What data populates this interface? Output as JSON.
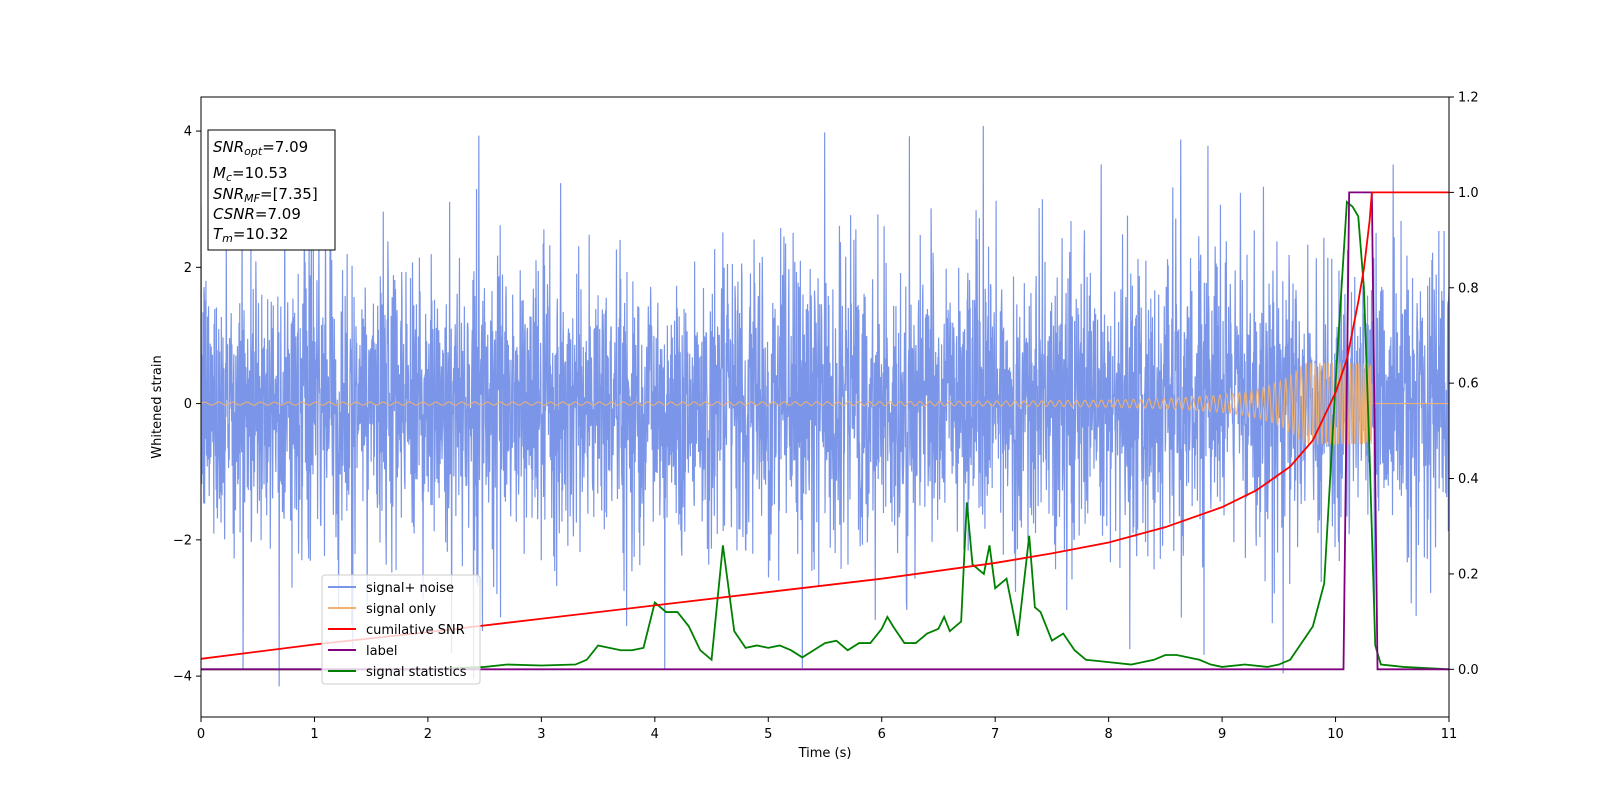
{
  "chart_data": {
    "type": "line",
    "title": "",
    "xlabel": "Time (s)",
    "ylabel": "Whitened strain",
    "xlim": [
      0,
      11
    ],
    "ylim": [
      -4.6,
      4.5
    ],
    "y2lim": [
      -0.1,
      1.2
    ],
    "x_ticks": [
      0,
      1,
      2,
      3,
      4,
      5,
      6,
      7,
      8,
      9,
      10,
      11
    ],
    "y_ticks": [
      -4,
      -2,
      0,
      2,
      4
    ],
    "y2_ticks": [
      0.0,
      0.2,
      0.4,
      0.6,
      0.8,
      1.0,
      1.2
    ],
    "y_tick_labels": [
      "−4",
      "−2",
      "0",
      "2",
      "4"
    ],
    "y2_tick_labels": [
      "0.0",
      "0.2",
      "0.4",
      "0.6",
      "0.8",
      "1.0",
      "1.2"
    ],
    "x_tick_labels": [
      "0",
      "1",
      "2",
      "3",
      "4",
      "5",
      "6",
      "7",
      "8",
      "9",
      "10",
      "11"
    ],
    "grid": false,
    "legend_position": "lower-left",
    "info_box": {
      "lines": [
        {
          "name": "SNR",
          "sub": "opt",
          "value": "=7.09"
        },
        {
          "name": "M",
          "sub": "c",
          "value": "=10.53"
        },
        {
          "name": "SNR",
          "sub": "MF",
          "value": "=[7.35]"
        },
        {
          "name": "CSNR",
          "sub": "",
          "value": "=7.09"
        },
        {
          "name": "T",
          "sub": "m",
          "value": "=10.32"
        }
      ]
    },
    "series": [
      {
        "name": "signal+ noise",
        "axis": "left",
        "color": "#7b96e8",
        "kind": "noise",
        "typical_range": [
          -1.9,
          1.9
        ],
        "peak_range": [
          -4.15,
          4.08
        ]
      },
      {
        "name": "signal only",
        "axis": "left",
        "color": "#f0b070",
        "kind": "chirp",
        "amplitude_start": 0.02,
        "amplitude_end": 0.6,
        "end_time": 10.32
      },
      {
        "name": "cumilative SNR",
        "axis": "right",
        "color": "#ff0000",
        "x": [
          0,
          1,
          2,
          3,
          4,
          5,
          6,
          7,
          7.5,
          8,
          8.5,
          9,
          9.3,
          9.6,
          9.8,
          10.0,
          10.1,
          10.2,
          10.25,
          10.3,
          10.32,
          11
        ],
        "values": [
          0.022,
          0.052,
          0.078,
          0.106,
          0.134,
          0.162,
          0.19,
          0.223,
          0.243,
          0.266,
          0.298,
          0.34,
          0.375,
          0.425,
          0.48,
          0.58,
          0.65,
          0.77,
          0.84,
          0.94,
          1.0,
          1.0
        ]
      },
      {
        "name": "label",
        "axis": "right",
        "color": "#800080",
        "x": [
          0,
          10.07,
          10.12,
          10.32,
          10.37,
          11
        ],
        "values": [
          0,
          0,
          1,
          1,
          0,
          0
        ]
      },
      {
        "name": "signal statistics",
        "axis": "right",
        "color": "#008000",
        "x": [
          0,
          1,
          2,
          2.5,
          2.7,
          3.0,
          3.3,
          3.4,
          3.5,
          3.6,
          3.7,
          3.8,
          3.9,
          4.0,
          4.1,
          4.2,
          4.3,
          4.4,
          4.5,
          4.6,
          4.7,
          4.8,
          4.9,
          5.0,
          5.1,
          5.2,
          5.3,
          5.4,
          5.5,
          5.6,
          5.7,
          5.8,
          5.9,
          6.0,
          6.05,
          6.1,
          6.2,
          6.3,
          6.4,
          6.45,
          6.5,
          6.55,
          6.6,
          6.7,
          6.75,
          6.8,
          6.9,
          6.95,
          7.0,
          7.1,
          7.2,
          7.3,
          7.35,
          7.4,
          7.5,
          7.6,
          7.7,
          7.8,
          8.0,
          8.2,
          8.4,
          8.5,
          8.6,
          8.7,
          8.8,
          8.9,
          9.0,
          9.2,
          9.4,
          9.5,
          9.6,
          9.8,
          9.9,
          10.0,
          10.1,
          10.15,
          10.2,
          10.25,
          10.3,
          10.35,
          10.4,
          10.6,
          11
        ],
        "values": [
          0,
          0,
          0,
          0.005,
          0.01,
          0.008,
          0.01,
          0.02,
          0.05,
          0.045,
          0.04,
          0.04,
          0.045,
          0.14,
          0.12,
          0.12,
          0.09,
          0.04,
          0.02,
          0.26,
          0.08,
          0.045,
          0.05,
          0.045,
          0.05,
          0.04,
          0.025,
          0.04,
          0.055,
          0.06,
          0.04,
          0.055,
          0.055,
          0.085,
          0.11,
          0.09,
          0.055,
          0.055,
          0.075,
          0.08,
          0.085,
          0.11,
          0.08,
          0.1,
          0.35,
          0.22,
          0.2,
          0.26,
          0.17,
          0.19,
          0.07,
          0.28,
          0.13,
          0.12,
          0.06,
          0.075,
          0.04,
          0.02,
          0.015,
          0.01,
          0.02,
          0.03,
          0.03,
          0.025,
          0.02,
          0.01,
          0.005,
          0.01,
          0.005,
          0.01,
          0.02,
          0.09,
          0.18,
          0.6,
          0.98,
          0.97,
          0.95,
          0.8,
          0.45,
          0.05,
          0.01,
          0.005,
          0.0
        ]
      }
    ]
  }
}
